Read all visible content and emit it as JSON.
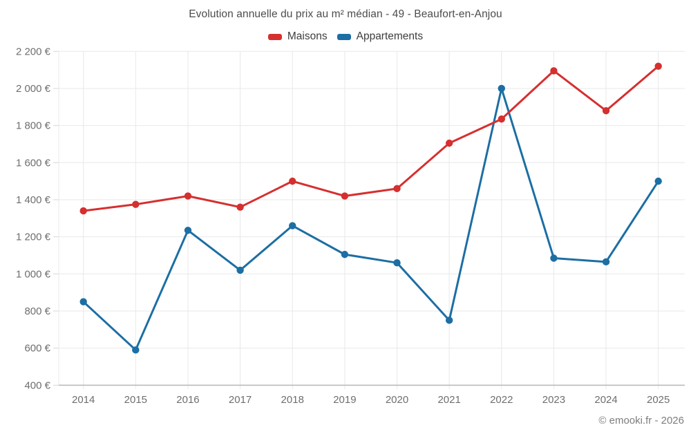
{
  "title": "Evolution annuelle du prix au m² médian - 49 - Beaufort-en-Anjou",
  "footer": "© emooki.fr - 2026",
  "colors": {
    "maisons": "#d62f2f",
    "appartements": "#1c6ea4",
    "grid": "#e8e8e8",
    "axis_line": "#b3b3b3",
    "tick_mark": "#d6d6d6",
    "tick_text": "#6e6e6e",
    "title_text": "#4c4c4c",
    "legend_text": "#3d3d3d",
    "footer_text": "#7d7d7d"
  },
  "chart_data": {
    "type": "line",
    "title": "Evolution annuelle du prix au m² médian - 49 - Beaufort-en-Anjou",
    "categories": [
      "2014",
      "2015",
      "2016",
      "2017",
      "2018",
      "2019",
      "2020",
      "2021",
      "2022",
      "2023",
      "2024",
      "2025"
    ],
    "series": [
      {
        "name": "Maisons",
        "color": "#d62f2f",
        "values": [
          1340,
          1375,
          1420,
          1360,
          1500,
          1420,
          1460,
          1705,
          1835,
          2095,
          1880,
          2120
        ]
      },
      {
        "name": "Appartements",
        "color": "#1c6ea4",
        "values": [
          850,
          590,
          1235,
          1020,
          1260,
          1105,
          1060,
          750,
          2000,
          1085,
          1065,
          1500
        ]
      }
    ],
    "xlabel": "",
    "ylabel": "",
    "ylim": [
      400,
      2200
    ],
    "ytick_step": 200,
    "ytick_labels": [
      "400 €",
      "600 €",
      "800 €",
      "1 000 €",
      "1 200 €",
      "1 400 €",
      "1 600 €",
      "1 800 €",
      "2 000 €",
      "2 200 €"
    ],
    "grid": true,
    "legend_position": "top",
    "marker": "circle",
    "unit": "€"
  }
}
